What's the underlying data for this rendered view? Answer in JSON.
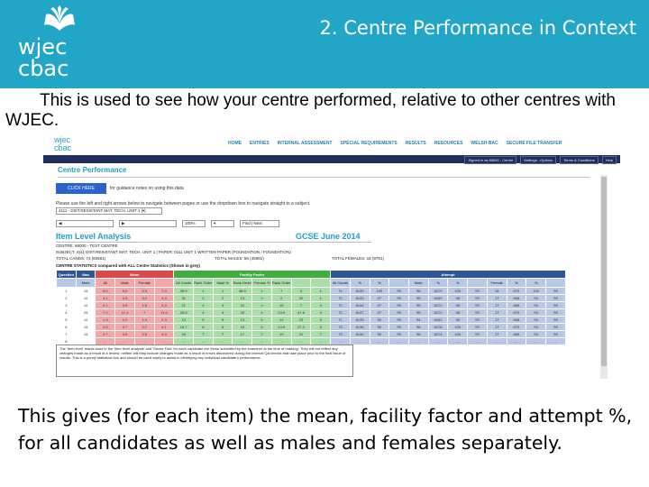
{
  "header": {
    "logo_line1": "wjec",
    "logo_line2": "cbac",
    "title": "2. Centre Performance in Context",
    "bg_color": "#22a6c7"
  },
  "intro_text": "This is used to see how your centre performed, relative to other centres with WJEC.",
  "screenshot": {
    "logo_line1": "wjec",
    "logo_line2": "cbac",
    "nav": [
      "HOME",
      "ENTRIES",
      "INTERNAL ASSESSMENT",
      "SPECIAL REQUIREMENTS",
      "RESULTS",
      "RESOURCES",
      "WELSH BAC",
      "SECURE FILE TRANSFER"
    ],
    "user_bar": [
      "Signed in as 68000 - Centre",
      "Settings - Options",
      "Terms & Conditions",
      "Help"
    ],
    "page_heading": "Centre Performance",
    "click_here_label": "CLICK HERE",
    "click_here_note": "for guidance notes on using this data",
    "instructions": "Please use the left and right arrows below to navigate between pages or use the dropdown box to navigate straight to a subject.",
    "unit_select": "4111 - DIST.RESISTANT MAT. TECH. UNIT 1 [▾]",
    "controls": [
      "◀",
      "▶",
      "100%",
      "▾",
      "Find | Next"
    ],
    "item_level_title": "Item Level Analysis",
    "series_title": "GCSE June  2014",
    "meta_centre": "CENTRE: 68000 - TEST CENTRE",
    "meta_subject": "SUBJECT: 4111 DIST.RESISTANT MAT. TECH. UNIT 1   |   PAPER: 0111 UNIT 1 WRITTEN PAPER (FOUNDATION / FOUNDATION)",
    "meta_total": "TOTAL CANDS: 74 (60581)",
    "meta_males": "TOTAL MALES: 56 (45981)",
    "meta_females": "TOTAL FEMALES: 18 (9781)",
    "stats_label": "CENTRE STATISTICS compared with ALL Centre Statistics (Shown in grey)",
    "table": {
      "groups": [
        {
          "label": "Question",
          "span": 1,
          "color": "#2f5597"
        },
        {
          "label": "Max",
          "span": 1,
          "color": "#2f5597"
        },
        {
          "label": "Mean",
          "span": 4,
          "color": "#d94a4a"
        },
        {
          "label": "Facility Factor",
          "span": 8,
          "color": "#3fae3f"
        },
        {
          "label": "Attempt",
          "span": 12,
          "color": "#2f5597"
        }
      ],
      "columns": [
        "",
        "Mark",
        "All",
        "Male",
        "Female",
        "",
        "All Cands",
        "Rank Order",
        "Male %",
        "Rank Order",
        "Female %",
        "Rank Order",
        "",
        "",
        "All Cands",
        "%",
        "%",
        "",
        "Male",
        "%",
        "%",
        "",
        "Female",
        "%",
        "%",
        ""
      ],
      "rows": [
        [
          "1",
          "15",
          "5.0",
          "5.0",
          "5.9",
          "7.0",
          "45.9",
          "1",
          "1",
          "48.9",
          "1",
          "7",
          "5",
          "1",
          "74",
          "6149",
          "100",
          "99",
          "56",
          "6179",
          "100",
          "99",
          "18",
          "670",
          "100",
          "99"
        ],
        [
          "2",
          "10",
          "3.1",
          "4.3",
          "3.2",
          "3.9",
          "31",
          "2",
          "2",
          "13",
          "3",
          "2",
          "30",
          "1",
          "72",
          "6143",
          "97",
          "99",
          "55",
          "6169",
          "98",
          "99",
          "17",
          "668",
          "94",
          "99"
        ],
        [
          "3",
          "10",
          "2.1",
          "3.9",
          "1.5",
          "2.9",
          "21",
          "3",
          "3",
          "24",
          "3",
          "15",
          "7",
          "3",
          "72",
          "6144",
          "97",
          "99",
          "55",
          "6170",
          "98",
          "99",
          "17",
          "669",
          "94",
          "99"
        ],
        [
          "4",
          "25",
          "7.2",
          "11.1",
          "7",
          "11.0",
          "28.8",
          "4",
          "4",
          "28",
          "4",
          "24.9",
          "47.6",
          "4",
          "72",
          "6147",
          "97",
          "99",
          "55",
          "6170",
          "98",
          "99",
          "17",
          "670",
          "94",
          "99"
        ],
        [
          "5",
          "10",
          "1.3",
          "2.2",
          "1.3",
          "2.3",
          "13",
          "5",
          "5",
          "13",
          "5",
          "13",
          "23",
          "5",
          "71",
          "6133",
          "96",
          "99",
          "54",
          "6162",
          "96",
          "99",
          "17",
          "668",
          "94",
          "99"
        ],
        [
          "6",
          "15",
          "2.5",
          "4.7",
          "2.7",
          "4.1",
          "16.7",
          "6",
          "6",
          "18",
          "6",
          "14.5",
          "27.3",
          "6",
          "73",
          "6138",
          "99",
          "99",
          "56",
          "6176",
          "100",
          "99",
          "17",
          "670",
          "94",
          "99"
        ],
        [
          "7",
          "15",
          "2.7",
          "4.5",
          "2.5",
          "4.3",
          "18",
          "7",
          "7",
          "17",
          "7",
          "19",
          "31",
          "7",
          "73",
          "6140",
          "99",
          "99",
          "56",
          "6174",
          "100",
          "99",
          "17",
          "669",
          "94",
          "99"
        ],
        [
          "8",
          "...",
          "...",
          "...",
          "...",
          "...",
          "...",
          "...",
          "...",
          "...",
          "...",
          "...",
          "...",
          "...",
          "...",
          "...",
          "...",
          "...",
          "...",
          "...",
          "...",
          "...",
          "...",
          "...",
          "...",
          "..."
        ]
      ]
    },
    "note": "The 'Item level' marks used in the 'item level analysis' and 'Sector Fact' for each candidate are those submitted by the examiner at the time of marking. They will not reflect any changes made as a result of a review; neither will they include changes made as a result of errors discovered during the internal QA checks that take place prior to the final issue of results. This is a purely statistical tool and should be used solely to assist in identifying any individual candidate's performance."
  },
  "outro_text": "This gives (for each item) the mean, facility factor and attempt %, for all candidates as well as males and females separately."
}
